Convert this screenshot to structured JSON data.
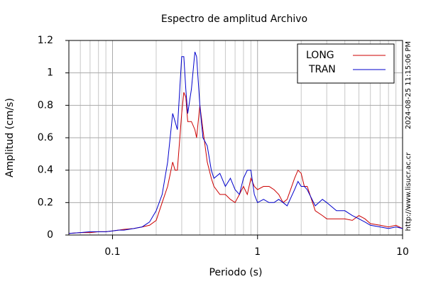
{
  "chart_data": {
    "type": "line",
    "title": "Espectro de amplitud Archivo",
    "x_label": "Periodo (s)",
    "y_label": "Amplitud (cm/s)",
    "annotations": [
      "2024-08-25 11:15:06 PM",
      "http://www.lisucr.ac.cr"
    ],
    "x": [
      0.05,
      0.06,
      0.07,
      0.08,
      0.09,
      0.1,
      0.11,
      0.12,
      0.14,
      0.16,
      0.18,
      0.2,
      0.22,
      0.24,
      0.26,
      0.27,
      0.28,
      0.3,
      0.31,
      0.32,
      0.33,
      0.35,
      0.37,
      0.38,
      0.4,
      0.42,
      0.45,
      0.48,
      0.5,
      0.55,
      0.6,
      0.65,
      0.7,
      0.75,
      0.8,
      0.85,
      0.9,
      0.95,
      1,
      1.1,
      1.2,
      1.3,
      1.4,
      1.5,
      1.6,
      1.8,
      1.9,
      2,
      2.1,
      2.2,
      2.5,
      2.8,
      3,
      3.5,
      4,
      4.5,
      5,
      5.5,
      6,
      7,
      8,
      9,
      10
    ],
    "series": [
      {
        "name": "LONG",
        "color": "#cc0000",
        "values": [
          0.01,
          0.015,
          0.015,
          0.02,
          0.02,
          0.025,
          0.03,
          0.035,
          0.04,
          0.05,
          0.06,
          0.09,
          0.2,
          0.3,
          0.45,
          0.4,
          0.4,
          0.75,
          0.88,
          0.85,
          0.7,
          0.7,
          0.65,
          0.6,
          0.8,
          0.65,
          0.45,
          0.35,
          0.3,
          0.25,
          0.25,
          0.22,
          0.2,
          0.25,
          0.3,
          0.25,
          0.35,
          0.3,
          0.28,
          0.3,
          0.3,
          0.28,
          0.25,
          0.2,
          0.22,
          0.35,
          0.4,
          0.38,
          0.3,
          0.3,
          0.15,
          0.12,
          0.1,
          0.1,
          0.1,
          0.09,
          0.12,
          0.1,
          0.07,
          0.06,
          0.05,
          0.06,
          0.04
        ]
      },
      {
        "name": "TRAN",
        "color": "#0000cc",
        "values": [
          0.01,
          0.015,
          0.02,
          0.02,
          0.02,
          0.025,
          0.03,
          0.03,
          0.04,
          0.05,
          0.08,
          0.15,
          0.25,
          0.45,
          0.75,
          0.7,
          0.65,
          1.1,
          1.1,
          0.9,
          0.75,
          0.9,
          1.13,
          1.1,
          0.8,
          0.6,
          0.55,
          0.4,
          0.35,
          0.38,
          0.3,
          0.35,
          0.28,
          0.25,
          0.35,
          0.4,
          0.4,
          0.25,
          0.2,
          0.22,
          0.2,
          0.2,
          0.22,
          0.2,
          0.18,
          0.28,
          0.33,
          0.3,
          0.3,
          0.28,
          0.18,
          0.22,
          0.2,
          0.15,
          0.15,
          0.12,
          0.1,
          0.08,
          0.06,
          0.05,
          0.04,
          0.05,
          0.04
        ]
      }
    ],
    "xlim": [
      0.05,
      10
    ],
    "xticks": [
      0.1,
      1,
      10
    ],
    "xminorticks": [
      0.06,
      0.07,
      0.08,
      0.09,
      0.2,
      0.3,
      0.4,
      0.5,
      0.6,
      0.7,
      0.8,
      0.9,
      2,
      3,
      4,
      5,
      6,
      7,
      8,
      9
    ],
    "ylim": [
      0,
      1.2
    ],
    "yticks": [
      0,
      0.2,
      0.4,
      0.6,
      0.8,
      1,
      1.2
    ],
    "xscale": "log",
    "grid": true,
    "legend": "upper right"
  }
}
